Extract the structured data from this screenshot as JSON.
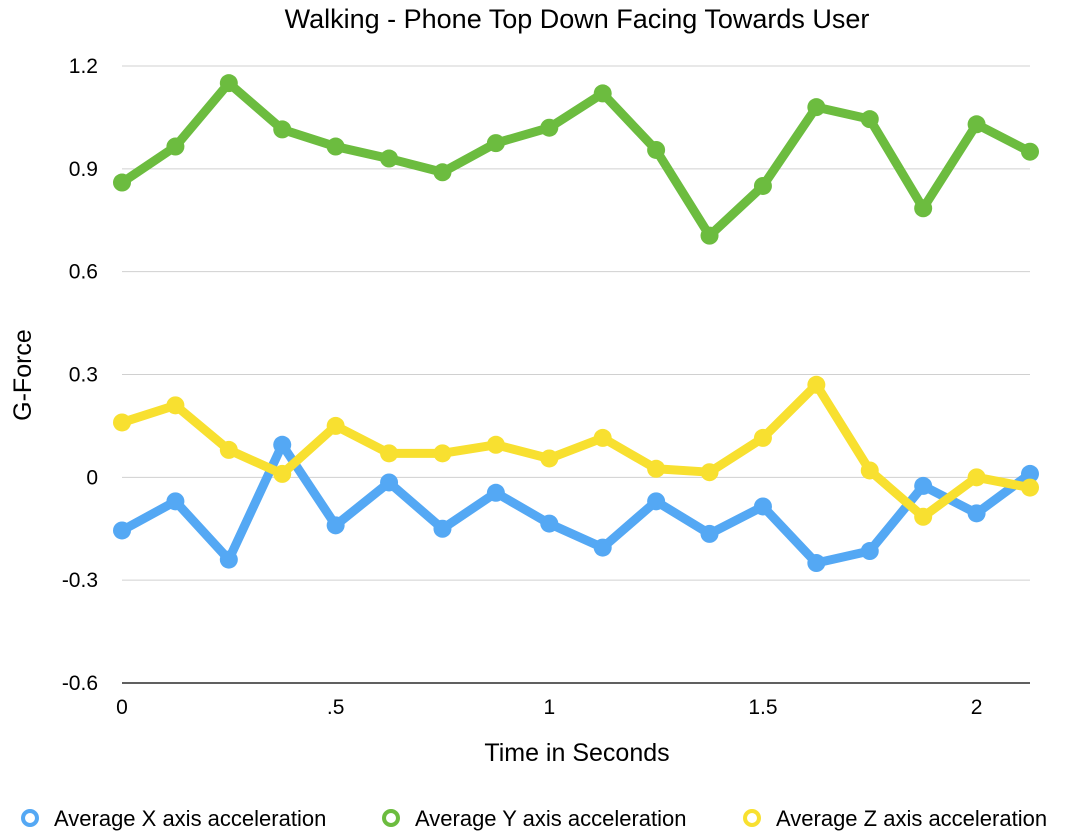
{
  "chart_data": {
    "type": "line",
    "title": "Walking - Phone Top Down Facing Towards User",
    "xlabel": "Time in Seconds",
    "ylabel": "G-Force",
    "xlim": [
      0,
      2.125
    ],
    "ylim": [
      -0.6,
      1.2
    ],
    "yticks": [
      -0.6,
      -0.3,
      0,
      0.3,
      0.6,
      0.9,
      1.2
    ],
    "ytick_labels": [
      "-0.6",
      "-0.3",
      "0",
      "0.3",
      "0.6",
      "0.9",
      "1.2"
    ],
    "xticks": [
      0,
      0.5,
      1,
      1.5,
      2
    ],
    "xtick_labels": [
      "0",
      ".5",
      "1",
      "1.5",
      "2"
    ],
    "grid": true,
    "legend_position": "bottom",
    "x": [
      0,
      0.125,
      0.25,
      0.375,
      0.5,
      0.625,
      0.75,
      0.875,
      1,
      1.125,
      1.25,
      1.375,
      1.5,
      1.625,
      1.75,
      1.875,
      2,
      2.125
    ],
    "series": [
      {
        "name": "Average X axis acceleration",
        "color": "#54a8f4",
        "values": [
          -0.155,
          -0.07,
          -0.24,
          0.095,
          -0.14,
          -0.015,
          -0.15,
          -0.045,
          -0.135,
          -0.205,
          -0.07,
          -0.165,
          -0.085,
          -0.25,
          -0.215,
          -0.025,
          -0.105,
          0.01
        ]
      },
      {
        "name": "Average Y axis acceleration",
        "color": "#6cbc3f",
        "values": [
          0.86,
          0.965,
          1.15,
          1.015,
          0.965,
          0.93,
          0.89,
          0.975,
          1.02,
          1.12,
          0.955,
          0.705,
          0.85,
          1.08,
          1.045,
          0.785,
          1.03,
          0.95
        ]
      },
      {
        "name": "Average Z axis acceleration",
        "color": "#f8e030",
        "values": [
          0.16,
          0.21,
          0.08,
          0.01,
          0.15,
          0.07,
          0.07,
          0.095,
          0.055,
          0.115,
          0.025,
          0.015,
          0.115,
          0.27,
          0.02,
          -0.115,
          0.0,
          -0.03
        ]
      }
    ]
  }
}
